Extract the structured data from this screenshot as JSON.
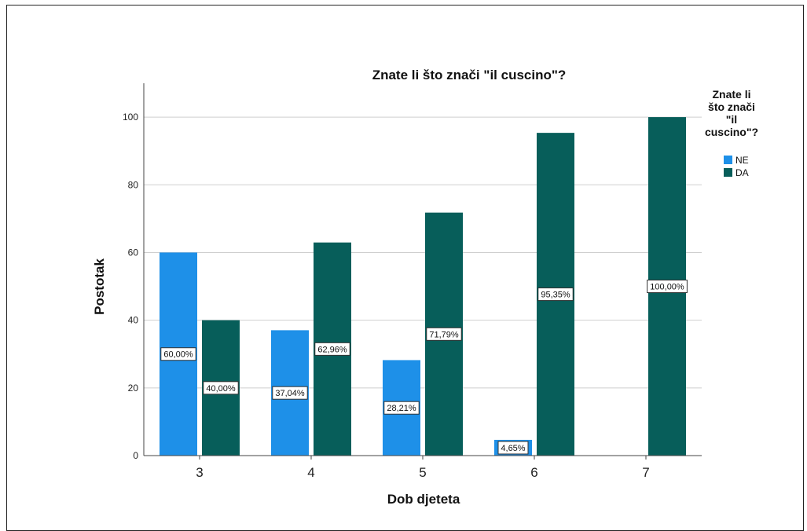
{
  "chart_data": {
    "type": "bar",
    "title": "Znate li što znači \"il cuscino\"?",
    "xlabel": "Dob djeteta",
    "ylabel": "Postotak",
    "categories": [
      "3",
      "4",
      "5",
      "6",
      "7"
    ],
    "series": [
      {
        "name": "NE",
        "color": "#1e90e8",
        "values": [
          60.0,
          37.04,
          28.21,
          4.65,
          null
        ],
        "labels": [
          "60,00%",
          "37,04%",
          "28,21%",
          "4,65%",
          ""
        ]
      },
      {
        "name": "DA",
        "color": "#075e5a",
        "values": [
          40.0,
          62.96,
          71.79,
          95.35,
          100.0
        ],
        "labels": [
          "40,00%",
          "62,96%",
          "71,79%",
          "95,35%",
          "100,00%"
        ]
      }
    ],
    "ylim": [
      0,
      110
    ],
    "yticks": [
      0,
      20,
      40,
      60,
      80,
      100
    ],
    "grid": true,
    "legend": {
      "title_lines": [
        "Znate li",
        "što znači",
        "\"il",
        "cuscino\"?"
      ],
      "position": "right"
    }
  }
}
